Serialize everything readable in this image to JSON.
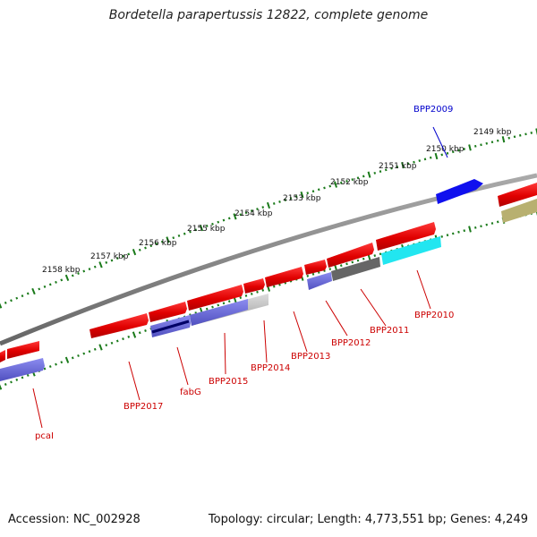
{
  "title": "Bordetella parapertussis 12822, complete genome",
  "footer": {
    "accession": "Accession: NC_002928",
    "topology": "Topology: circular; Length: 4,773,551 bp; Genes: 4,249"
  },
  "scale_ticks": [
    "2149 kbp",
    "2150 kbp",
    "2151 kbp",
    "2152 kbp",
    "2153 kbp",
    "2154 kbp",
    "2155 kbp",
    "2156 kbp",
    "2157 kbp",
    "2158 kbp"
  ],
  "genes": [
    {
      "label": "BPP2009",
      "color": "#0000cc"
    },
    {
      "label": "BPP2010",
      "color": "#cc0000"
    },
    {
      "label": "BPP2011",
      "color": "#cc0000"
    },
    {
      "label": "BPP2012",
      "color": "#cc0000"
    },
    {
      "label": "BPP2013",
      "color": "#cc0000"
    },
    {
      "label": "BPP2014",
      "color": "#cc0000"
    },
    {
      "label": "BPP2015",
      "color": "#cc0000"
    },
    {
      "label": "fabG",
      "color": "#cc0000"
    },
    {
      "label": "BPP2017",
      "color": "#cc0000"
    },
    {
      "label": "pcaI",
      "color": "#cc0000"
    }
  ],
  "colors": {
    "backbone": "#888888",
    "ticks": "#1a7a1a",
    "forward_gene": "#ee1111",
    "reverse_gene": "#7070dd",
    "highlight_gene": "#1010ee",
    "cyan_feature": "#22e6f0",
    "gray_feature": "#666666",
    "olive_feature": "#b8b070"
  }
}
